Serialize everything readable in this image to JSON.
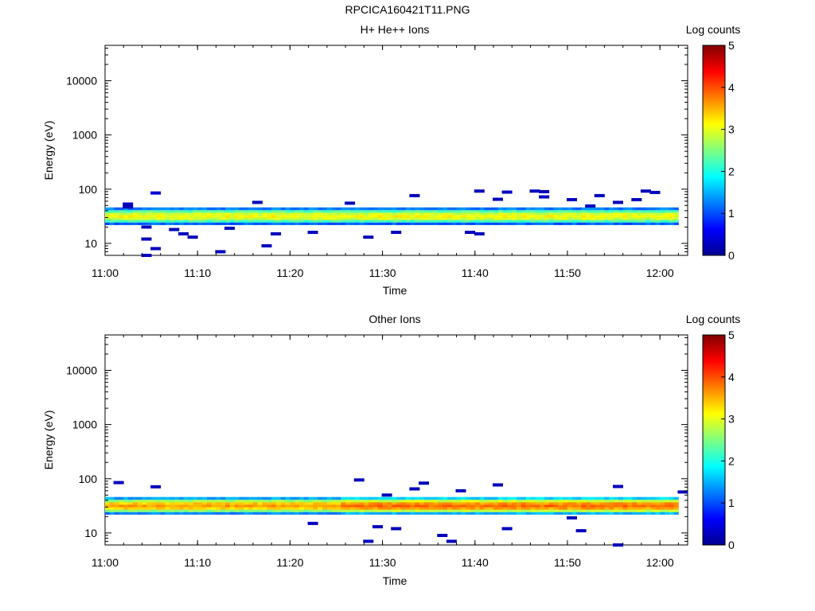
{
  "figure_title": "RPCICA160421T11.PNG",
  "colorbar": {
    "label": "Log counts",
    "ticks": [
      "0",
      "1",
      "2",
      "3",
      "4",
      "5"
    ],
    "range": [
      0,
      5
    ],
    "colormap": "jet"
  },
  "chart_data": [
    {
      "type": "heatmap",
      "title": "H+ He++ Ions",
      "xlabel": "Time",
      "ylabel": "Energy (eV)",
      "yscale": "log",
      "xlim": [
        "11:00",
        "12:03"
      ],
      "ylim": [
        6,
        45000
      ],
      "xticks": [
        "11:00",
        "11:10",
        "11:20",
        "11:30",
        "11:40",
        "11:50",
        "12:00"
      ],
      "yticks": [
        "10",
        "100",
        "1000",
        "10000"
      ],
      "band": {
        "energy_min_ev": 22,
        "energy_max_ev": 46,
        "core_ev": 32,
        "peak_log_counts": 3.1,
        "time_start": "11:00",
        "time_end": "12:02"
      },
      "sparse_points": [
        {
          "t": "11:02",
          "e": 53,
          "v": 0.3
        },
        {
          "t": "11:02",
          "e": 47,
          "v": 0.3
        },
        {
          "t": "11:04",
          "e": 20,
          "v": 0.3
        },
        {
          "t": "11:04",
          "e": 12,
          "v": 0.3
        },
        {
          "t": "11:04",
          "e": 6,
          "v": 0.3
        },
        {
          "t": "11:05",
          "e": 85,
          "v": 0.4
        },
        {
          "t": "11:05",
          "e": 8,
          "v": 0.3
        },
        {
          "t": "11:07",
          "e": 18,
          "v": 0.3
        },
        {
          "t": "11:08",
          "e": 15,
          "v": 0.3
        },
        {
          "t": "11:09",
          "e": 13,
          "v": 0.3
        },
        {
          "t": "11:12",
          "e": 7,
          "v": 0.3
        },
        {
          "t": "11:13",
          "e": 19,
          "v": 0.3
        },
        {
          "t": "11:16",
          "e": 57,
          "v": 0.3
        },
        {
          "t": "11:17",
          "e": 9,
          "v": 0.3
        },
        {
          "t": "11:18",
          "e": 15,
          "v": 0.3
        },
        {
          "t": "11:22",
          "e": 16,
          "v": 0.3
        },
        {
          "t": "11:26",
          "e": 55,
          "v": 0.3
        },
        {
          "t": "11:28",
          "e": 13,
          "v": 0.3
        },
        {
          "t": "11:31",
          "e": 16,
          "v": 0.3
        },
        {
          "t": "11:33",
          "e": 76,
          "v": 0.3
        },
        {
          "t": "11:39",
          "e": 16,
          "v": 0.3
        },
        {
          "t": "11:40",
          "e": 92,
          "v": 0.3
        },
        {
          "t": "11:40",
          "e": 15,
          "v": 0.3
        },
        {
          "t": "11:42",
          "e": 65,
          "v": 0.3
        },
        {
          "t": "11:43",
          "e": 88,
          "v": 0.3
        },
        {
          "t": "11:46",
          "e": 92,
          "v": 0.3
        },
        {
          "t": "11:47",
          "e": 90,
          "v": 0.3
        },
        {
          "t": "11:47",
          "e": 72,
          "v": 0.3
        },
        {
          "t": "11:50",
          "e": 64,
          "v": 0.3
        },
        {
          "t": "11:52",
          "e": 49,
          "v": 0.3
        },
        {
          "t": "11:53",
          "e": 76,
          "v": 0.3
        },
        {
          "t": "11:55",
          "e": 57,
          "v": 0.3
        },
        {
          "t": "11:57",
          "e": 64,
          "v": 0.3
        },
        {
          "t": "11:58",
          "e": 92,
          "v": 0.3
        },
        {
          "t": "11:59",
          "e": 87,
          "v": 0.3
        }
      ]
    },
    {
      "type": "heatmap",
      "title": "Other Ions",
      "xlabel": "Time",
      "ylabel": "Energy (eV)",
      "yscale": "log",
      "xlim": [
        "11:00",
        "12:03"
      ],
      "ylim": [
        6,
        45000
      ],
      "xticks": [
        "11:00",
        "11:10",
        "11:20",
        "11:30",
        "11:40",
        "11:50",
        "12:00"
      ],
      "yticks": [
        "10",
        "100",
        "1000",
        "10000"
      ],
      "band": {
        "energy_min_ev": 22,
        "energy_max_ev": 46,
        "core_ev": 32,
        "peak_log_counts": 3.6,
        "time_start": "11:00",
        "time_end": "12:02"
      },
      "sparse_points": [
        {
          "t": "11:01",
          "e": 85,
          "v": 0.3
        },
        {
          "t": "11:05",
          "e": 71,
          "v": 0.3
        },
        {
          "t": "11:22",
          "e": 15,
          "v": 0.3
        },
        {
          "t": "11:27",
          "e": 95,
          "v": 0.3
        },
        {
          "t": "11:28",
          "e": 7,
          "v": 0.3
        },
        {
          "t": "11:29",
          "e": 13,
          "v": 0.3
        },
        {
          "t": "11:30",
          "e": 50,
          "v": 0.3
        },
        {
          "t": "11:31",
          "e": 12,
          "v": 0.3
        },
        {
          "t": "11:33",
          "e": 65,
          "v": 0.3
        },
        {
          "t": "11:34",
          "e": 83,
          "v": 0.3
        },
        {
          "t": "11:36",
          "e": 9,
          "v": 0.3
        },
        {
          "t": "11:37",
          "e": 7,
          "v": 0.3
        },
        {
          "t": "11:38",
          "e": 60,
          "v": 0.3
        },
        {
          "t": "11:42",
          "e": 77,
          "v": 0.3
        },
        {
          "t": "11:43",
          "e": 12,
          "v": 0.3
        },
        {
          "t": "11:50",
          "e": 19,
          "v": 0.3
        },
        {
          "t": "11:51",
          "e": 11,
          "v": 0.3
        },
        {
          "t": "11:55",
          "e": 72,
          "v": 0.3
        },
        {
          "t": "11:55",
          "e": 6,
          "v": 0.3
        },
        {
          "t": "12:02",
          "e": 57,
          "v": 0.3
        }
      ]
    }
  ]
}
